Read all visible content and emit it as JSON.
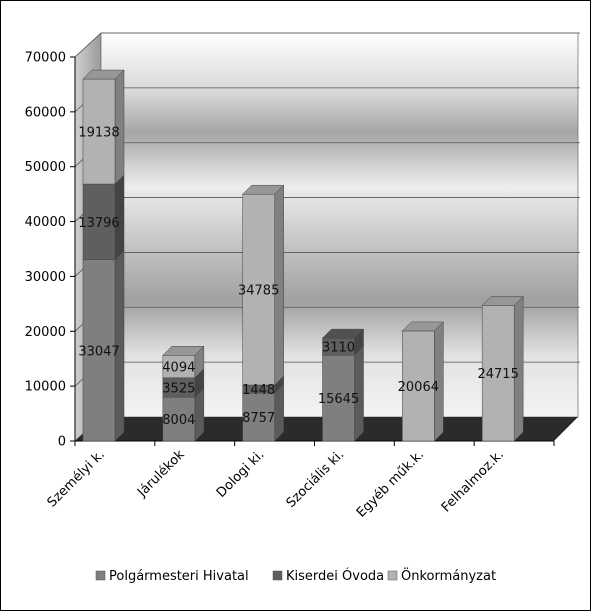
{
  "chart_data": {
    "type": "bar",
    "stacked": true,
    "three_d": true,
    "categories": [
      "Személyi k.",
      "Járulékok",
      "Dologi ki.",
      "Szociális ki.",
      "Egyéb műk.k.",
      "Felhalmoz.k."
    ],
    "series": [
      {
        "name": "Polgármesteri Hivatal",
        "color": "#7f7f7f",
        "values": [
          33047,
          8004,
          8757,
          15645,
          0,
          0
        ]
      },
      {
        "name": "Kiserdei Óvoda",
        "color": "#5f5f5f",
        "values": [
          13796,
          3525,
          1448,
          3110,
          0,
          0
        ]
      },
      {
        "name": "Önkormányzat",
        "color": "#b2b2b2",
        "values": [
          19138,
          4094,
          34785,
          0,
          20064,
          24715
        ]
      }
    ],
    "data_labels": [
      [
        "33047",
        "8004",
        "8757",
        "15645",
        "",
        ""
      ],
      [
        "13796",
        "3525",
        "1448",
        "3110",
        "",
        ""
      ],
      [
        "19138",
        "4094",
        "34785",
        "",
        "20064",
        "24715"
      ]
    ],
    "y_ticks": [
      "0",
      "10000",
      "20000",
      "30000",
      "40000",
      "50000",
      "60000",
      "70000"
    ],
    "ylim": [
      0,
      70000
    ],
    "grid": true,
    "legend_position": "bottom",
    "title": "",
    "xlabel": "",
    "ylabel": ""
  }
}
